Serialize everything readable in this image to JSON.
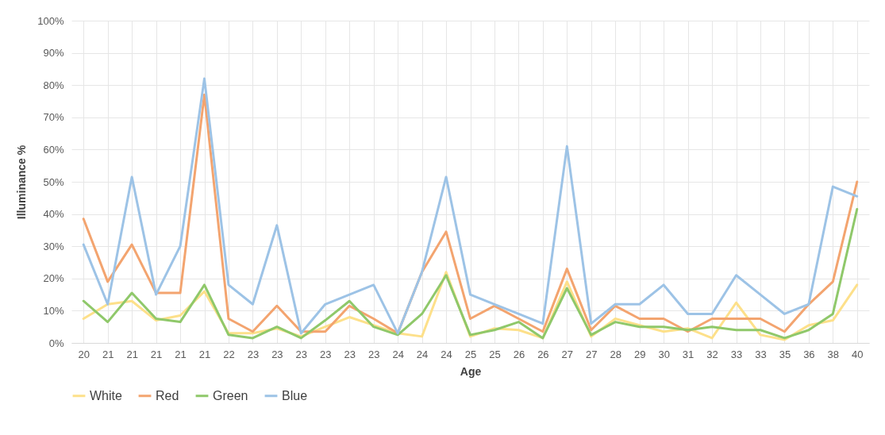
{
  "chart_data": {
    "type": "line",
    "xlabel": "Age",
    "ylabel": "Illuminance %",
    "categories": [
      "20",
      "21",
      "21",
      "21",
      "21",
      "21",
      "22",
      "23",
      "23",
      "23",
      "23",
      "23",
      "23",
      "24",
      "24",
      "24",
      "25",
      "25",
      "26",
      "26",
      "27",
      "27",
      "28",
      "29",
      "30",
      "31",
      "32",
      "33",
      "33",
      "35",
      "36",
      "38",
      "40"
    ],
    "series": [
      {
        "name": "White",
        "color": "#fde08a",
        "values": [
          7.5,
          12,
          13,
          7,
          8.5,
          16,
          3,
          3,
          4.5,
          2,
          5,
          8,
          5.5,
          3,
          2,
          22,
          2,
          4.5,
          4,
          1.5,
          19,
          2,
          7.5,
          5.5,
          3.5,
          4.5,
          1.5,
          12.5,
          2.5,
          1,
          5.5,
          7,
          18
        ]
      },
      {
        "name": "Red",
        "color": "#f3a46f",
        "values": [
          38.5,
          19,
          30.5,
          15.5,
          15.5,
          77,
          7.5,
          3.5,
          11.5,
          3.5,
          3.5,
          11.5,
          7.5,
          3,
          22,
          34.5,
          7.5,
          11.5,
          7.5,
          3.5,
          23,
          4,
          11.5,
          7.5,
          7.5,
          3.5,
          7.5,
          7.5,
          7.5,
          3.5,
          12,
          19,
          50
        ]
      },
      {
        "name": "Green",
        "color": "#8fc86a",
        "values": [
          13,
          6.5,
          15.5,
          7.5,
          6.5,
          18,
          2.5,
          1.5,
          5,
          1.5,
          7,
          13,
          5,
          2.5,
          9,
          21,
          2.5,
          4,
          6.5,
          1.5,
          17,
          2.5,
          6.5,
          5,
          5,
          4,
          5,
          4,
          4,
          1.5,
          4,
          9,
          41.5
        ]
      },
      {
        "name": "Blue",
        "color": "#9dc3e6",
        "values": [
          30.5,
          12,
          51.5,
          15,
          30,
          82,
          18,
          12,
          36.5,
          3,
          12,
          15,
          18,
          3,
          22,
          51.5,
          15,
          12,
          9,
          6,
          61,
          6,
          12,
          12,
          18,
          9,
          9,
          21,
          15,
          9,
          12,
          48.5,
          45.5
        ]
      }
    ],
    "ylim": [
      0,
      100
    ],
    "yticks": [
      {
        "value": 0,
        "label": "0%"
      },
      {
        "value": 10,
        "label": "10%"
      },
      {
        "value": 20,
        "label": "20%"
      },
      {
        "value": 30,
        "label": "30%"
      },
      {
        "value": 40,
        "label": "40%"
      },
      {
        "value": 50,
        "label": "50%"
      },
      {
        "value": 60,
        "label": "60%"
      },
      {
        "value": 70,
        "label": "70%"
      },
      {
        "value": 80,
        "label": "80%"
      },
      {
        "value": 90,
        "label": "90%"
      },
      {
        "value": 100,
        "label": "100%"
      }
    ],
    "grid": true,
    "legend": "bottom",
    "marker": "none",
    "line_style": "solid"
  }
}
